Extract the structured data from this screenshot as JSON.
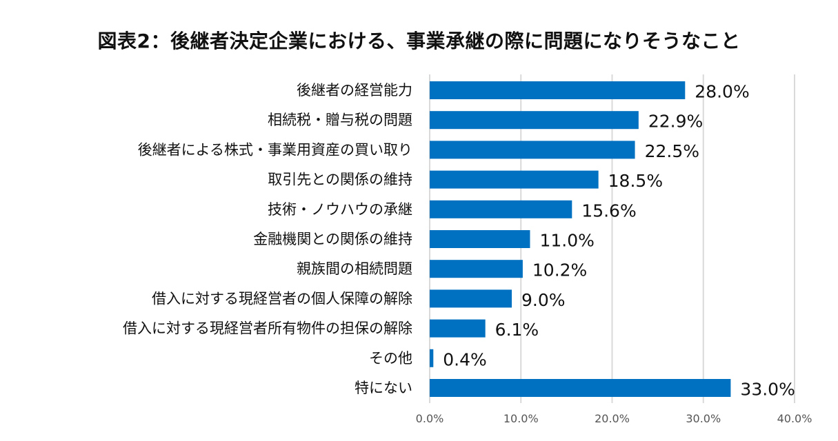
{
  "chart_data": {
    "type": "bar",
    "orientation": "horizontal",
    "title": "図表2：後継者決定企業における、事業承継の際に問題になりそうなこと",
    "categories": [
      "後継者の経営能力",
      "相続税・贈与税の問題",
      "後継者による株式・事業用資産の買い取り",
      "取引先との関係の維持",
      "技術・ノウハウの承継",
      "金融機関との関係の維持",
      "親族間の相続問題",
      "借入に対する現経営者の個人保障の解除",
      "借入に対する現経営者所有物件の担保の解除",
      "その他",
      "特にない"
    ],
    "values": [
      28.0,
      22.9,
      22.5,
      18.5,
      15.6,
      11.0,
      10.2,
      9.0,
      6.1,
      0.4,
      33.0
    ],
    "value_labels": [
      "28.0%",
      "22.9%",
      "22.5%",
      "18.5%",
      "15.6%",
      "11.0%",
      "10.2%",
      "9.0%",
      "6.1%",
      "0.4%",
      "33.0%"
    ],
    "xlim": [
      0,
      40
    ],
    "xticks": [
      0,
      10,
      20,
      30,
      40
    ],
    "xtick_labels": [
      "0.0%",
      "10.0%",
      "20.0%",
      "30.0%",
      "40.0%"
    ],
    "xlabel": "",
    "ylabel": "",
    "grid": true,
    "bar_color": "#0070C0",
    "grid_color": "#D9D9D9"
  }
}
